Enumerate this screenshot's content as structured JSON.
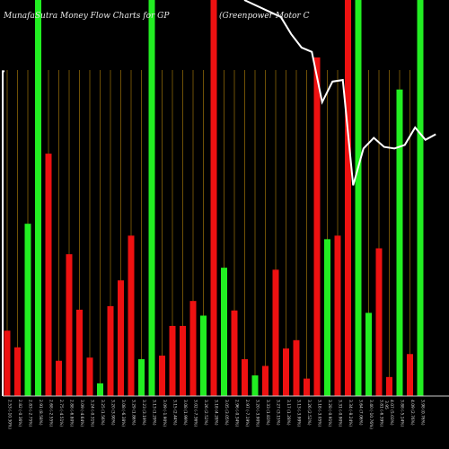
{
  "chart_data": {
    "type": "bar",
    "title_left": "MunafaSutra  Money Flow  Charts for GP",
    "title_right": "(Greenpower Motor C",
    "colors": {
      "up": "#22ee22",
      "down": "#ee1111",
      "background": "#000000",
      "grid": "#b8860b",
      "price_line": "#ffffff",
      "axis": "#cccccc"
    },
    "ylim": [
      0,
      100
    ],
    "bars": [
      {
        "label": "2.53 (-10.30%)",
        "color": "down",
        "value": 16.5
      },
      {
        "label": "2.82 (-0.36%)",
        "color": "down",
        "value": 12.3
      },
      {
        "label": "2.83 (-2.75%)",
        "color": "up",
        "value": 43.5
      },
      {
        "label": "2.91 (8.58%)",
        "color": "up",
        "value": 100
      },
      {
        "label": "2.68 (-2.55%)",
        "color": "down",
        "value": 61.2
      },
      {
        "label": "2.75 (-4.51%)",
        "color": "down",
        "value": 8.9
      },
      {
        "label": "2.88 (-6.80%)",
        "color": "down",
        "value": 35.8
      },
      {
        "label": "3.09 (-4.64%)",
        "color": "down",
        "value": 21.8
      },
      {
        "label": "3.24 (-0.31%)",
        "color": "down",
        "value": 9.7
      },
      {
        "label": "3.25 (1.56%)",
        "color": "up",
        "value": 3.2
      },
      {
        "label": "3.20 (3.90%)",
        "color": "down",
        "value": 22.7
      },
      {
        "label": "3.08 (-6.38%)",
        "color": "down",
        "value": 29.2
      },
      {
        "label": "3.29 (1.86%)",
        "color": "down",
        "value": 40.5
      },
      {
        "label": "3.23 (3.19%)",
        "color": "up",
        "value": 9.3
      },
      {
        "label": "3.13 (1.29%)",
        "color": "up",
        "value": 100
      },
      {
        "label": "3.09 (-1.90%)",
        "color": "down",
        "value": 10.2
      },
      {
        "label": "3.15 (2.44%)",
        "color": "down",
        "value": 17.7
      },
      {
        "label": "3.08 (1.99%)",
        "color": "down",
        "value": 17.7
      },
      {
        "label": "3.02 (-7.36%)",
        "color": "down",
        "value": 24.0
      },
      {
        "label": "3.26 (2.52%)",
        "color": "up",
        "value": 20.3
      },
      {
        "label": "3.18 (4.28%)",
        "color": "down",
        "value": 100
      },
      {
        "label": "3.05 (3.05%)",
        "color": "up",
        "value": 32.4
      },
      {
        "label": "2.96 (-0.34%)",
        "color": "down",
        "value": 21.6
      },
      {
        "label": "2.97 (-7.19%)",
        "color": "down",
        "value": 9.3
      },
      {
        "label": "3.20 (-3.90%)",
        "color": "up",
        "value": 5.2
      },
      {
        "label": "3.33 (1.83%)",
        "color": "down",
        "value": 7.6
      },
      {
        "label": "3.27 (3.15%)",
        "color": "down",
        "value": 31.9
      },
      {
        "label": "3.17 (1.28%)",
        "color": "down",
        "value": 12.0
      },
      {
        "label": "3.13 (-3.99%)",
        "color": "down",
        "value": 14.1
      },
      {
        "label": "3.26 (2.52%)",
        "color": "down",
        "value": 4.4
      },
      {
        "label": "3.18 (-3.05%)",
        "color": "down",
        "value": 85.5
      },
      {
        "label": "3.28 (-0.91%)",
        "color": "up",
        "value": 39.6
      },
      {
        "label": "3.31 (-0.90%)",
        "color": "down",
        "value": 40.5
      },
      {
        "label": "3.34 (-8.24%)",
        "color": "down",
        "value": 100
      },
      {
        "label": "3.64 (7.06%)",
        "color": "up",
        "value": 100
      },
      {
        "label": "3.40 (-10.76%)",
        "color": "up",
        "value": 21.0
      },
      {
        "label": "3.81 (-6.39%)",
        "color": "down",
        "value": 37.3
      },
      {
        "label": "4.07 (5.03%)",
        "color": "down",
        "value": 4.8
      },
      {
        "label": "3.88 (-5.14%)",
        "color": "up",
        "value": 77.4
      },
      {
        "label": "4.09 (2.76%)",
        "color": "down",
        "value": 10.6
      },
      {
        "label": "3.98 (0.76%)",
        "color": "up",
        "value": 100
      }
    ],
    "x_axis_extra_label": "3.95",
    "price_line": [
      0,
      0,
      0,
      0,
      0,
      0,
      0,
      0,
      0,
      0,
      0,
      0,
      0,
      0,
      0,
      0,
      0,
      0,
      0,
      0,
      0,
      0,
      0,
      0,
      0,
      0,
      0,
      95.7,
      91.4,
      88.0,
      86.9,
      74.2,
      79.4,
      79.8,
      53.2,
      62.5,
      65.2,
      62.9,
      62.5,
      63.4,
      67.8,
      64.7,
      66.1
    ],
    "price_line_start": [
      0,
      82
    ]
  }
}
